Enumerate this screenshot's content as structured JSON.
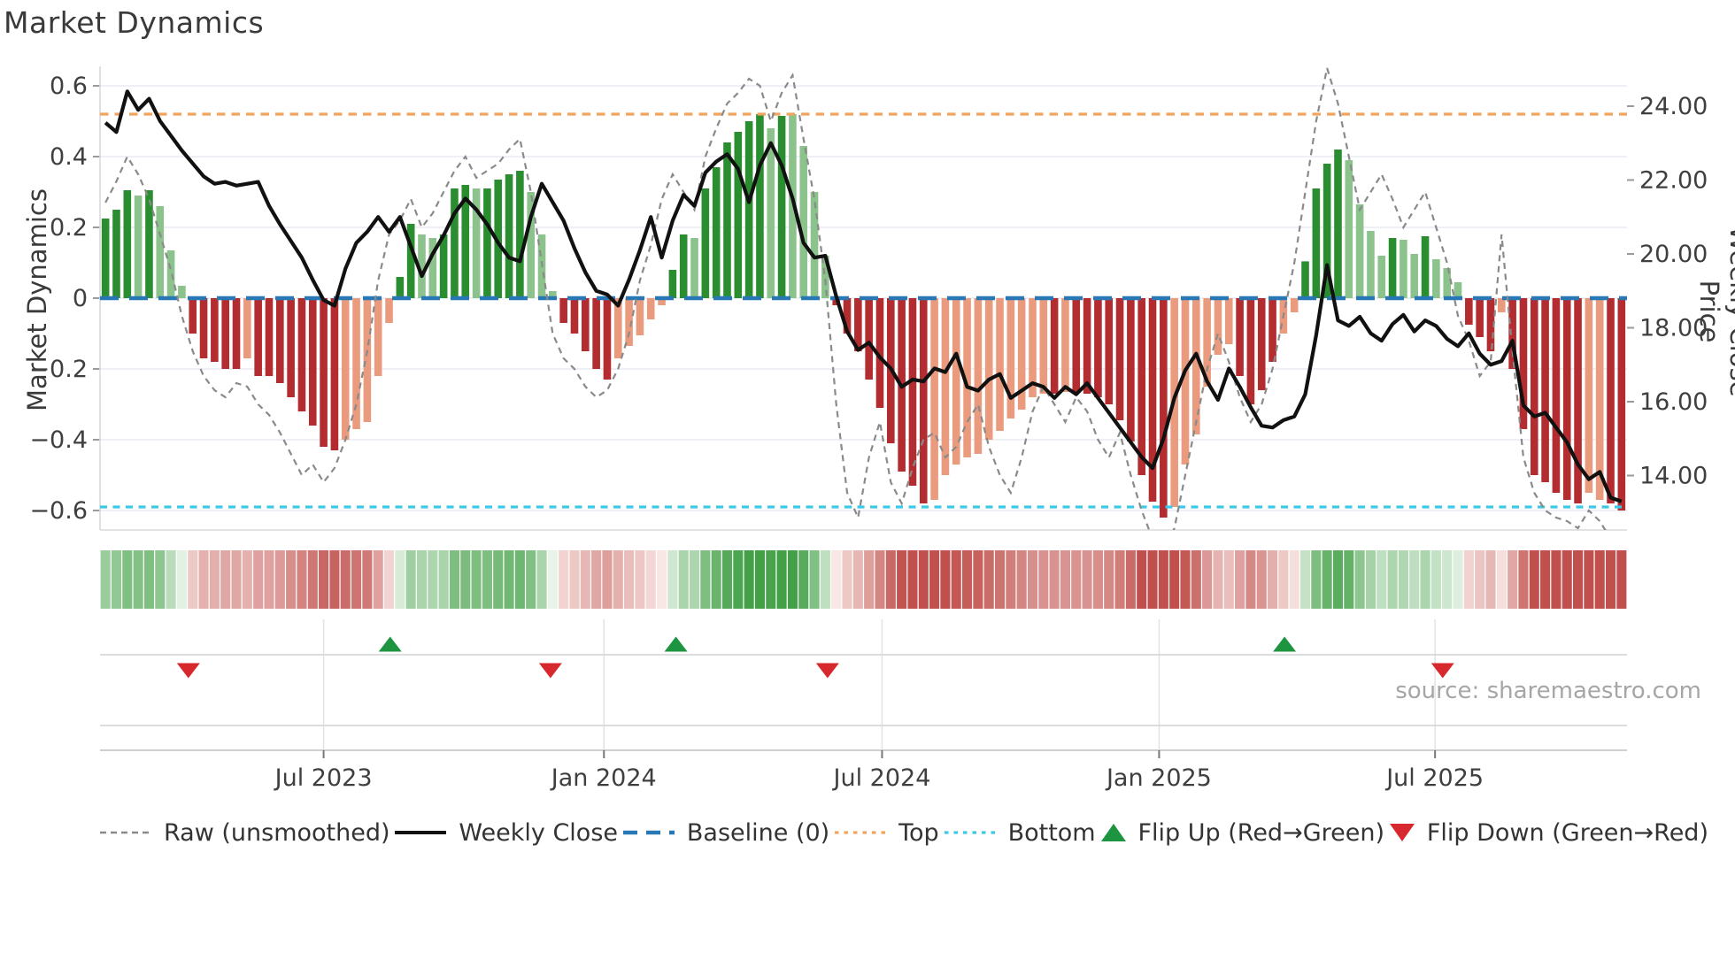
{
  "header": {
    "title": "Market Dynamics"
  },
  "axes": {
    "left_label": "Market Dynamics",
    "right_label": "Weekly Close Price",
    "left_ticks": [
      {
        "label": "0.6",
        "value": 0.6
      },
      {
        "label": "0.4",
        "value": 0.4
      },
      {
        "label": "0.2",
        "value": 0.2
      },
      {
        "label": "0",
        "value": 0.0
      },
      {
        "label": "−0.2",
        "value": -0.2
      },
      {
        "label": "−0.4",
        "value": -0.4
      },
      {
        "label": "−0.6",
        "value": -0.6
      }
    ],
    "right_ticks": [
      {
        "label": "24.00",
        "value": 24.0
      },
      {
        "label": "22.00",
        "value": 22.0
      },
      {
        "label": "20.00",
        "value": 20.0
      },
      {
        "label": "18.00",
        "value": 18.0
      },
      {
        "label": "16.00",
        "value": 16.0
      },
      {
        "label": "14.00",
        "value": 14.0
      }
    ],
    "x_ticks": [
      {
        "label": "Jul 2023",
        "week": 20.0
      },
      {
        "label": "Jan 2024",
        "week": 45.7
      },
      {
        "label": "Jul 2024",
        "week": 71.2
      },
      {
        "label": "Jan 2025",
        "week": 96.6
      },
      {
        "label": "Jul 2025",
        "week": 121.9
      }
    ]
  },
  "legend": {
    "items": [
      {
        "label": "Raw (unsmoothed)",
        "symbol": "dashed-gray-line"
      },
      {
        "label": "Weekly Close",
        "symbol": "solid-black-line"
      },
      {
        "label": "Baseline (0)",
        "symbol": "dashed-blue-line"
      },
      {
        "label": "Top",
        "symbol": "dotted-orange-line"
      },
      {
        "label": "Bottom",
        "symbol": "dotted-cyan-line"
      },
      {
        "label": "Flip Up (Red→Green)",
        "symbol": "green-up-triangle"
      },
      {
        "label": "Flip Down (Green→Red)",
        "symbol": "red-down-triangle"
      }
    ]
  },
  "source": {
    "text": "source: sharemaestro.com"
  },
  "colors": {
    "bar_dark_green": "#2a8e30",
    "bar_light_green": "#8cc38c",
    "bar_dark_red": "#b22c30",
    "bar_light_red": "#eb9b7d",
    "weekly_close_line": "#111111",
    "raw_line": "#8a8a8a",
    "baseline": "#2878b5",
    "top_line": "#f2a35c",
    "bottom_line": "#3cc9e8",
    "flip_up_marker": "#1d9440",
    "flip_down_marker": "#d7282e",
    "gridline": "#e9ecf2",
    "heatmap_green_max": "#43a047",
    "heatmap_red_max": "#c0504d"
  },
  "chart_data": {
    "type": "bar",
    "subtype": "weekly oscillator bars + dual-axis lines + heatmap strip + flip markers",
    "n_weeks": 140,
    "x_unit": "week_index",
    "ylim_left": [
      -0.655,
      0.655
    ],
    "ylim_right": [
      12.53,
      25.08
    ],
    "grid": "horizontal only in main panel",
    "legend_position": "bottom row",
    "reference_lines": {
      "baseline": 0.0,
      "top": 0.52,
      "bottom": -0.59
    },
    "osc_series": {
      "name": "Market Dynamics (smoothed bars)",
      "values": [
        0.225,
        0.25,
        0.305,
        0.29,
        0.305,
        0.26,
        0.135,
        0.035,
        -0.1,
        -0.17,
        -0.18,
        -0.2,
        -0.2,
        -0.17,
        -0.22,
        -0.22,
        -0.24,
        -0.28,
        -0.32,
        -0.36,
        -0.42,
        -0.43,
        -0.4,
        -0.37,
        -0.35,
        -0.22,
        -0.07,
        0.06,
        0.21,
        0.18,
        0.17,
        0.18,
        0.31,
        0.32,
        0.31,
        0.31,
        0.335,
        0.35,
        0.36,
        0.3,
        0.18,
        0.02,
        -0.07,
        -0.1,
        -0.15,
        -0.2,
        -0.23,
        -0.17,
        -0.135,
        -0.105,
        -0.06,
        -0.02,
        0.08,
        0.18,
        0.17,
        0.31,
        0.37,
        0.44,
        0.47,
        0.5,
        0.52,
        0.48,
        0.515,
        0.52,
        0.43,
        0.3,
        0.12,
        -0.02,
        -0.1,
        -0.15,
        -0.23,
        -0.31,
        -0.41,
        -0.49,
        -0.53,
        -0.58,
        -0.57,
        -0.5,
        -0.47,
        -0.45,
        -0.44,
        -0.4,
        -0.375,
        -0.34,
        -0.315,
        -0.28,
        -0.27,
        -0.27,
        -0.265,
        -0.265,
        -0.27,
        -0.28,
        -0.3,
        -0.345,
        -0.405,
        -0.5,
        -0.575,
        -0.62,
        -0.59,
        -0.47,
        -0.385,
        -0.25,
        -0.16,
        -0.13,
        -0.22,
        -0.3,
        -0.26,
        -0.18,
        -0.1,
        -0.04,
        0.104,
        0.31,
        0.38,
        0.42,
        0.39,
        0.265,
        0.19,
        0.12,
        0.17,
        0.165,
        0.125,
        0.175,
        0.11,
        0.085,
        0.045,
        -0.075,
        -0.11,
        -0.15,
        -0.04,
        -0.2,
        -0.37,
        -0.5,
        -0.52,
        -0.55,
        -0.57,
        -0.58,
        -0.55,
        -0.57,
        -0.58,
        -0.6
      ],
      "bar_styles": [
        "dg",
        "dg",
        "dg",
        "lg",
        "dg",
        "lg",
        "lg",
        "lg",
        "dr",
        "dr",
        "dr",
        "dr",
        "dr",
        "lr",
        "dr",
        "dr",
        "dr",
        "dr",
        "dr",
        "dr",
        "dr",
        "dr",
        "lr",
        "lr",
        "lr",
        "lr",
        "lr",
        "dg",
        "dg",
        "lg",
        "lg",
        "dg",
        "dg",
        "dg",
        "lg",
        "dg",
        "dg",
        "dg",
        "dg",
        "lg",
        "lg",
        "lg",
        "dr",
        "dr",
        "dr",
        "dr",
        "dr",
        "lr",
        "lr",
        "lr",
        "lr",
        "lr",
        "dg",
        "dg",
        "lg",
        "dg",
        "dg",
        "dg",
        "dg",
        "dg",
        "dg",
        "lg",
        "dg",
        "lg",
        "lg",
        "lg",
        "lg",
        "dr",
        "dr",
        "dr",
        "dr",
        "dr",
        "dr",
        "dr",
        "dr",
        "dr",
        "lr",
        "lr",
        "lr",
        "lr",
        "lr",
        "lr",
        "lr",
        "lr",
        "lr",
        "lr",
        "lr",
        "dr",
        "lr",
        "dr",
        "dr",
        "dr",
        "dr",
        "dr",
        "dr",
        "dr",
        "dr",
        "dr",
        "lr",
        "lr",
        "lr",
        "lr",
        "lr",
        "lr",
        "dr",
        "dr",
        "dr",
        "dr",
        "lr",
        "lr",
        "dg",
        "dg",
        "dg",
        "dg",
        "lg",
        "lg",
        "lg",
        "lg",
        "dg",
        "lg",
        "lg",
        "dg",
        "lg",
        "lg",
        "lg",
        "dr",
        "dr",
        "dr",
        "lr",
        "dr",
        "dr",
        "dr",
        "dr",
        "dr",
        "dr",
        "dr",
        "lr",
        "lr",
        "dr",
        "dr"
      ]
    },
    "raw_series": {
      "name": "Raw (unsmoothed)",
      "values": [
        0.27,
        0.33,
        0.4,
        0.35,
        0.28,
        0.18,
        0.08,
        -0.05,
        -0.15,
        -0.22,
        -0.26,
        -0.28,
        -0.24,
        -0.25,
        -0.3,
        -0.33,
        -0.38,
        -0.44,
        -0.5,
        -0.47,
        -0.52,
        -0.48,
        -0.4,
        -0.3,
        -0.15,
        0.05,
        0.18,
        0.22,
        0.28,
        0.2,
        0.24,
        0.3,
        0.36,
        0.4,
        0.34,
        0.36,
        0.38,
        0.42,
        0.45,
        0.3,
        0.1,
        -0.1,
        -0.17,
        -0.2,
        -0.25,
        -0.28,
        -0.26,
        -0.2,
        -0.1,
        0.05,
        0.15,
        0.28,
        0.35,
        0.3,
        0.25,
        0.4,
        0.48,
        0.55,
        0.58,
        0.62,
        0.6,
        0.5,
        0.58,
        0.63,
        0.45,
        0.28,
        0.05,
        -0.3,
        -0.55,
        -0.62,
        -0.45,
        -0.35,
        -0.52,
        -0.58,
        -0.48,
        -0.4,
        -0.38,
        -0.45,
        -0.42,
        -0.35,
        -0.3,
        -0.42,
        -0.5,
        -0.55,
        -0.45,
        -0.32,
        -0.25,
        -0.3,
        -0.35,
        -0.28,
        -0.32,
        -0.4,
        -0.45,
        -0.38,
        -0.5,
        -0.6,
        -0.68,
        -0.72,
        -0.65,
        -0.5,
        -0.35,
        -0.2,
        -0.1,
        -0.18,
        -0.28,
        -0.35,
        -0.3,
        -0.2,
        -0.05,
        0.1,
        0.3,
        0.5,
        0.65,
        0.55,
        0.4,
        0.25,
        0.3,
        0.35,
        0.28,
        0.2,
        0.25,
        0.3,
        0.2,
        0.1,
        -0.05,
        -0.12,
        -0.22,
        -0.18,
        0.18,
        -0.15,
        -0.45,
        -0.55,
        -0.6,
        -0.62,
        -0.63,
        -0.65,
        -0.6,
        -0.63,
        -0.68,
        -0.7
      ]
    },
    "price_series": {
      "name": "Weekly Close",
      "values": [
        23.55,
        23.3,
        24.4,
        23.9,
        24.2,
        23.6,
        23.2,
        22.8,
        22.45,
        22.1,
        21.9,
        21.95,
        21.85,
        21.9,
        21.95,
        21.3,
        20.8,
        20.35,
        19.9,
        19.3,
        18.75,
        18.6,
        19.6,
        20.3,
        20.6,
        21.0,
        20.6,
        21.0,
        20.2,
        19.4,
        20.0,
        20.5,
        21.1,
        21.5,
        21.2,
        20.8,
        20.3,
        19.9,
        19.8,
        21.0,
        21.9,
        21.4,
        20.9,
        20.15,
        19.5,
        19.0,
        18.9,
        18.6,
        19.3,
        20.1,
        21.0,
        19.9,
        20.9,
        21.6,
        21.3,
        22.2,
        22.5,
        22.7,
        22.3,
        21.4,
        22.4,
        23.0,
        22.4,
        21.5,
        20.3,
        19.9,
        19.95,
        18.85,
        17.9,
        17.4,
        17.6,
        17.2,
        16.9,
        16.4,
        16.6,
        16.55,
        16.9,
        16.8,
        17.3,
        16.4,
        16.3,
        16.6,
        16.75,
        16.1,
        16.3,
        16.5,
        16.4,
        16.1,
        16.4,
        16.2,
        16.5,
        16.1,
        15.7,
        15.3,
        14.9,
        14.5,
        14.2,
        15.0,
        16.1,
        16.85,
        17.3,
        16.55,
        16.05,
        16.9,
        16.4,
        15.85,
        15.35,
        15.3,
        15.5,
        15.6,
        16.2,
        17.8,
        19.7,
        18.2,
        18.05,
        18.3,
        17.85,
        17.65,
        18.1,
        18.35,
        17.9,
        18.2,
        18.05,
        17.7,
        17.5,
        17.85,
        17.3,
        17.0,
        17.1,
        17.65,
        15.9,
        15.6,
        15.7,
        15.3,
        14.9,
        14.3,
        13.9,
        14.1,
        13.4,
        13.3
      ]
    },
    "heatmap_strip": {
      "mirrors": "osc_series",
      "palette": "white-to-green for positive, white-to-red for negative"
    },
    "markers": {
      "flip_up_weeks": [
        26.1,
        52.3,
        108.1
      ],
      "flip_down_weeks": [
        7.6,
        40.8,
        66.2,
        122.6
      ]
    }
  }
}
